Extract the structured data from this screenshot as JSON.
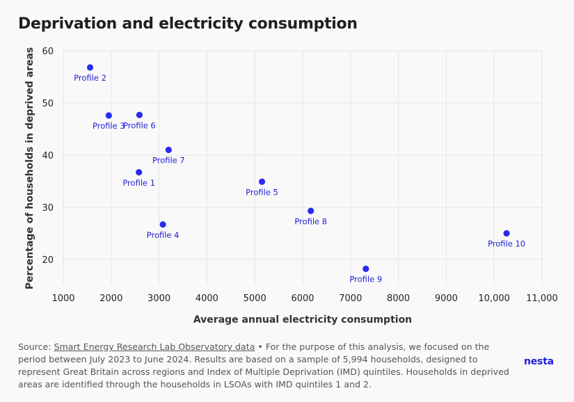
{
  "title": "Deprivation and electricity consumption",
  "footnote": {
    "prefix": "Source: ",
    "link_text": "Smart Energy Research Lab Observatory data",
    "body": " • For the purpose of this analysis, we focused on the period between July 2023 to June 2024. Results are based on a sample of 5,994 households, designed to represent Great Britain across regions and Index of Multiple Deprivation (IMD) quintiles. Households in deprived areas are identified through the households in LSOAs with IMD quintiles 1 and 2."
  },
  "logo_text": "nesta",
  "colors": {
    "point": "#2b2bf0",
    "label": "#1e1ed8",
    "background": "#f9f9f9"
  },
  "chart_data": {
    "type": "scatter",
    "xlabel": "Average annual electricity consumption",
    "ylabel": "Percentage of households in deprived areas",
    "xlim": [
      1000,
      11000
    ],
    "ylim": [
      15,
      60
    ],
    "x_ticks": [
      1000,
      2000,
      3000,
      4000,
      5000,
      6000,
      7000,
      8000,
      9000,
      10000,
      11000
    ],
    "x_tick_labels": [
      "1000",
      "2000",
      "3000",
      "4000",
      "5000",
      "6000",
      "7000",
      "8000",
      "9000",
      "10,000",
      "11,000"
    ],
    "y_ticks": [
      20,
      30,
      40,
      50,
      60
    ],
    "y_tick_labels": [
      "20",
      "30",
      "40",
      "50",
      "60"
    ],
    "grid": true,
    "points": [
      {
        "label": "Profile 1",
        "x": 2580,
        "y": 36.7
      },
      {
        "label": "Profile 2",
        "x": 1560,
        "y": 56.8
      },
      {
        "label": "Profile 3",
        "x": 1950,
        "y": 47.6
      },
      {
        "label": "Profile 4",
        "x": 3080,
        "y": 26.7
      },
      {
        "label": "Profile 5",
        "x": 5150,
        "y": 34.9
      },
      {
        "label": "Profile 6",
        "x": 2590,
        "y": 47.7
      },
      {
        "label": "Profile 7",
        "x": 3200,
        "y": 41.0
      },
      {
        "label": "Profile 8",
        "x": 6170,
        "y": 29.3
      },
      {
        "label": "Profile 9",
        "x": 7320,
        "y": 18.2
      },
      {
        "label": "Profile 10",
        "x": 10260,
        "y": 25.0
      }
    ]
  }
}
